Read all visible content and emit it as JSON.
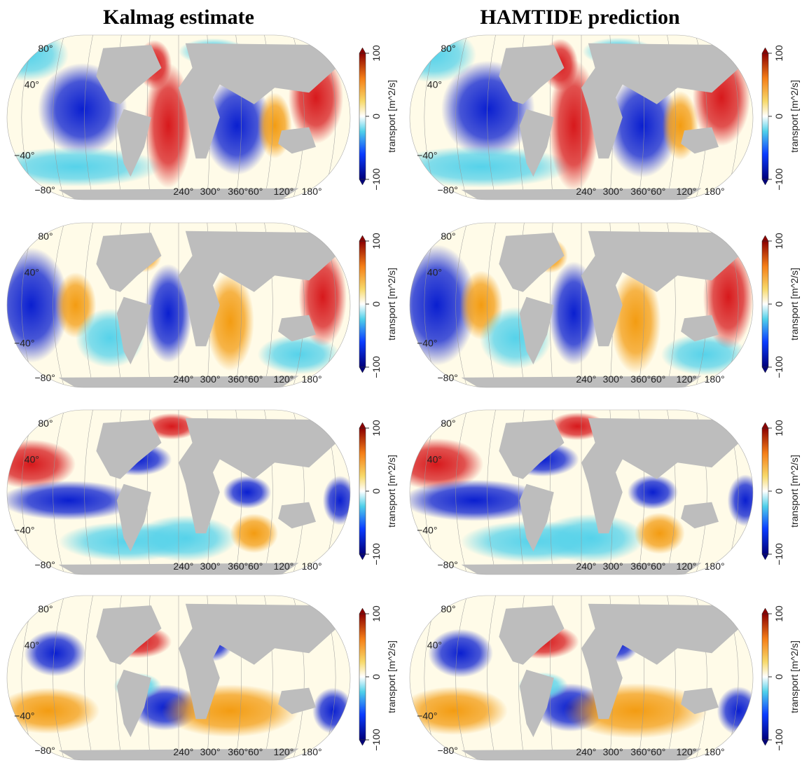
{
  "titles": [
    "Kalmag estimate",
    "HAMTIDE prediction"
  ],
  "lat_labels": [
    "80°",
    "40°",
    "−40°",
    "−80°"
  ],
  "lon_labels": [
    "240°",
    "300°",
    "360°",
    "60°",
    "120°",
    "180°"
  ],
  "colorbar": {
    "label": "transport [m^2/s]",
    "range": [
      -100,
      100
    ],
    "ticks": [
      {
        "value": -100,
        "label": "−100"
      },
      0,
      100
    ]
  }
}
